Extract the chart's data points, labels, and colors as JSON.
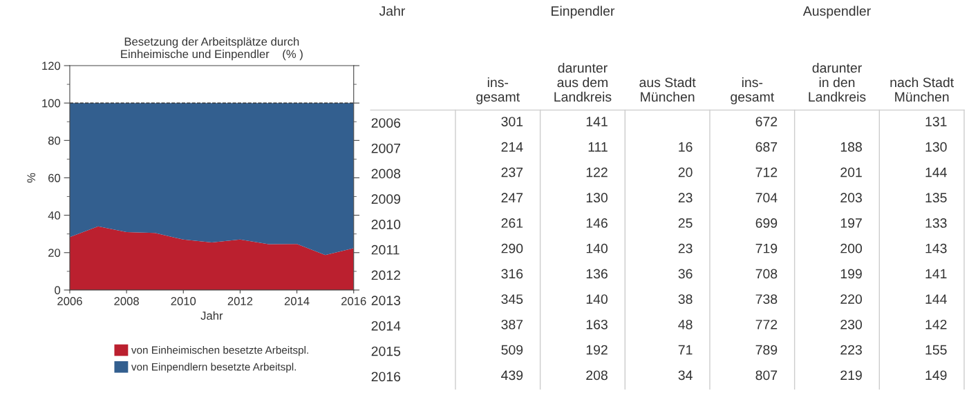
{
  "chart_data": [
    {
      "type": "area",
      "stacked": true,
      "title": "Besetzung der Arbeitsplätze durch\nEinheimische und Einpendler    (% )",
      "xlabel": "Jahr",
      "ylabel": "%",
      "x": [
        2006,
        2007,
        2008,
        2009,
        2010,
        2011,
        2012,
        2013,
        2014,
        2015,
        2016
      ],
      "series": [
        {
          "name": "von Einheimischen besetzte Arbeitspl.",
          "color": "#bb202f",
          "values": [
            28.3,
            34,
            31,
            30.5,
            27,
            25.5,
            27,
            24.5,
            24.6,
            18.7,
            22.4
          ]
        },
        {
          "name": "von Einpendlern besetzte Arbeitspl.",
          "color": "#335f8f",
          "values": [
            71.7,
            66,
            69,
            69.5,
            73,
            74.5,
            73,
            75.5,
            75.4,
            81.3,
            77.6
          ]
        }
      ],
      "xlim": [
        2006,
        2016
      ],
      "xticks": [
        2006,
        2008,
        2010,
        2012,
        2014,
        2016
      ],
      "ylim": [
        0,
        120
      ],
      "yticks": [
        0,
        20,
        40,
        60,
        80,
        100,
        120
      ],
      "ref_lines": [
        {
          "axis": "y",
          "value": 100,
          "color": "#222222",
          "line_style": "dashed"
        }
      ],
      "legend": "bottom",
      "grid": false
    },
    {
      "type": "heatmap",
      "data_labels": true,
      "categories": [
        "ins-\ngesamt",
        "darunter\naus dem\nLandkreis",
        "aus Stadt\nMünchen",
        "ins-\ngesamt",
        "darunter\nin den\nLandkreis",
        "nach Stadt\nMünchen"
      ],
      "y_categories": [
        "2006",
        "2007",
        "2008",
        "2009",
        "2010",
        "2011",
        "2012",
        "2013",
        "2014",
        "2015",
        "2016"
      ],
      "cells": [
        [
          301,
          141,
          null,
          672,
          null,
          131
        ],
        [
          214,
          111,
          16,
          687,
          188,
          130
        ],
        [
          237,
          122,
          20,
          712,
          201,
          144
        ],
        [
          247,
          130,
          23,
          704,
          203,
          135
        ],
        [
          261,
          146,
          25,
          699,
          197,
          133
        ],
        [
          290,
          140,
          23,
          719,
          200,
          143
        ],
        [
          316,
          136,
          36,
          708,
          199,
          141
        ],
        [
          345,
          140,
          38,
          738,
          220,
          144
        ],
        [
          387,
          163,
          48,
          772,
          230,
          142
        ],
        [
          509,
          192,
          71,
          789,
          223,
          155
        ],
        [
          439,
          208,
          34,
          807,
          219,
          149
        ]
      ],
      "annotations": [
        "Jahr",
        "Einpendler",
        "Auspendler"
      ]
    }
  ]
}
